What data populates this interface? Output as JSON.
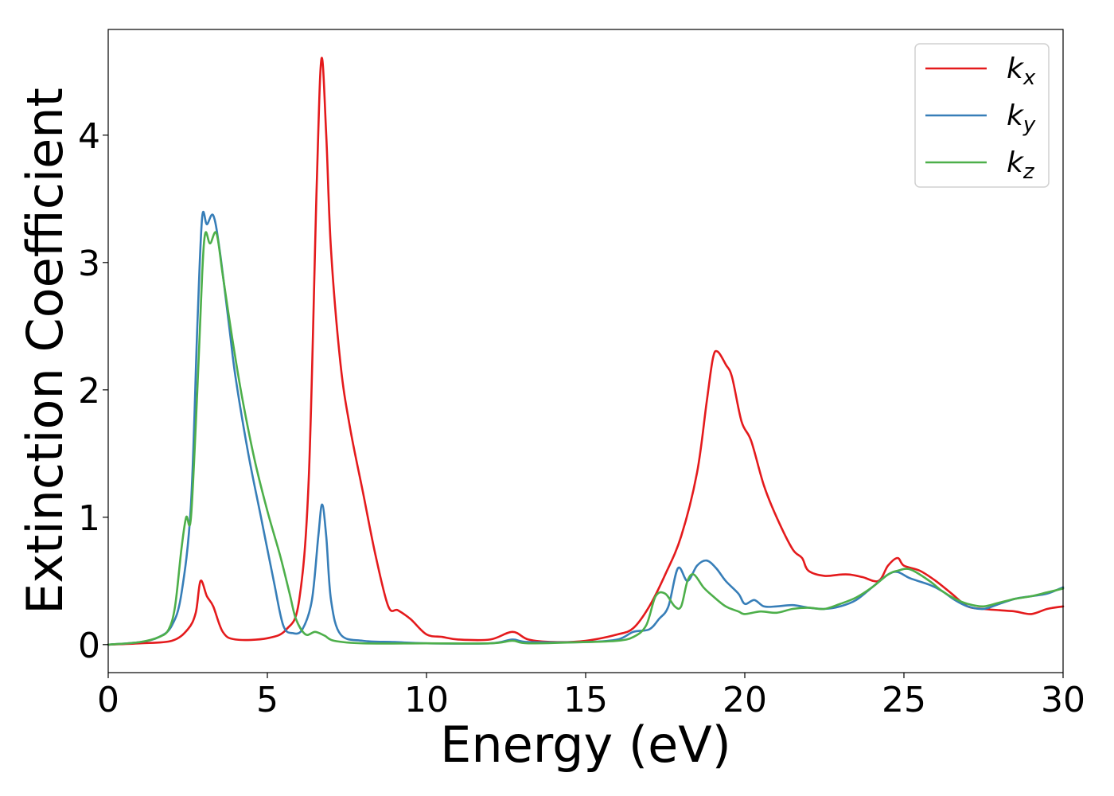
{
  "chart_data": {
    "type": "line",
    "xlabel": "Energy (eV)",
    "ylabel": "Extinction Coefficient",
    "xlim": [
      0,
      30
    ],
    "ylim": [
      -0.22,
      4.83
    ],
    "xticks": [
      0,
      5,
      10,
      15,
      20,
      25,
      30
    ],
    "yticks": [
      0,
      1,
      2,
      3,
      4
    ],
    "grid": false,
    "legend_position": "top-right",
    "series": [
      {
        "name": "k_x",
        "legend_base": "k",
        "legend_sub": "x",
        "color": "#e41a1c",
        "points": [
          [
            0,
            0
          ],
          [
            1.0,
            0.01
          ],
          [
            2.0,
            0.03
          ],
          [
            2.5,
            0.12
          ],
          [
            2.75,
            0.25
          ],
          [
            2.9,
            0.5
          ],
          [
            3.1,
            0.38
          ],
          [
            3.3,
            0.3
          ],
          [
            3.6,
            0.1
          ],
          [
            4.0,
            0.04
          ],
          [
            5.0,
            0.05
          ],
          [
            5.6,
            0.12
          ],
          [
            6.0,
            0.35
          ],
          [
            6.3,
            1.3
          ],
          [
            6.55,
            3.6
          ],
          [
            6.7,
            4.6
          ],
          [
            6.85,
            4.0
          ],
          [
            7.0,
            3.1
          ],
          [
            7.3,
            2.2
          ],
          [
            7.6,
            1.7
          ],
          [
            8.0,
            1.2
          ],
          [
            8.4,
            0.7
          ],
          [
            8.8,
            0.3
          ],
          [
            9.1,
            0.27
          ],
          [
            9.5,
            0.2
          ],
          [
            10.0,
            0.08
          ],
          [
            10.5,
            0.06
          ],
          [
            11.0,
            0.04
          ],
          [
            12.0,
            0.04
          ],
          [
            12.7,
            0.1
          ],
          [
            13.2,
            0.04
          ],
          [
            14.0,
            0.02
          ],
          [
            15.0,
            0.03
          ],
          [
            16.0,
            0.08
          ],
          [
            16.5,
            0.13
          ],
          [
            17.0,
            0.3
          ],
          [
            17.5,
            0.55
          ],
          [
            18.0,
            0.85
          ],
          [
            18.5,
            1.35
          ],
          [
            18.8,
            1.9
          ],
          [
            19.0,
            2.25
          ],
          [
            19.15,
            2.3
          ],
          [
            19.4,
            2.2
          ],
          [
            19.6,
            2.1
          ],
          [
            19.9,
            1.75
          ],
          [
            20.2,
            1.6
          ],
          [
            20.6,
            1.25
          ],
          [
            21.0,
            1.0
          ],
          [
            21.5,
            0.75
          ],
          [
            21.8,
            0.68
          ],
          [
            22.0,
            0.58
          ],
          [
            22.5,
            0.54
          ],
          [
            23.0,
            0.55
          ],
          [
            23.3,
            0.55
          ],
          [
            23.7,
            0.53
          ],
          [
            24.2,
            0.5
          ],
          [
            24.5,
            0.62
          ],
          [
            24.8,
            0.68
          ],
          [
            25.0,
            0.62
          ],
          [
            25.5,
            0.58
          ],
          [
            26.0,
            0.5
          ],
          [
            26.5,
            0.4
          ],
          [
            27.0,
            0.3
          ],
          [
            27.5,
            0.28
          ],
          [
            28.0,
            0.27
          ],
          [
            28.5,
            0.26
          ],
          [
            29.0,
            0.24
          ],
          [
            29.5,
            0.28
          ],
          [
            30.0,
            0.3
          ]
        ]
      },
      {
        "name": "k_y",
        "legend_base": "k",
        "legend_sub": "y",
        "color": "#377eb8",
        "points": [
          [
            0,
            0
          ],
          [
            1.0,
            0.02
          ],
          [
            1.6,
            0.06
          ],
          [
            2.0,
            0.15
          ],
          [
            2.3,
            0.4
          ],
          [
            2.6,
            1.1
          ],
          [
            2.8,
            2.5
          ],
          [
            2.95,
            3.35
          ],
          [
            3.1,
            3.3
          ],
          [
            3.3,
            3.37
          ],
          [
            3.5,
            3.1
          ],
          [
            3.8,
            2.5
          ],
          [
            4.0,
            2.1
          ],
          [
            4.4,
            1.5
          ],
          [
            4.8,
            1.0
          ],
          [
            5.2,
            0.5
          ],
          [
            5.5,
            0.15
          ],
          [
            5.8,
            0.09
          ],
          [
            6.1,
            0.12
          ],
          [
            6.4,
            0.35
          ],
          [
            6.6,
            0.85
          ],
          [
            6.72,
            1.1
          ],
          [
            6.85,
            0.85
          ],
          [
            7.0,
            0.35
          ],
          [
            7.3,
            0.08
          ],
          [
            8.0,
            0.03
          ],
          [
            9.0,
            0.02
          ],
          [
            10.0,
            0.01
          ],
          [
            12.0,
            0.01
          ],
          [
            12.7,
            0.04
          ],
          [
            13.2,
            0.02
          ],
          [
            15.0,
            0.02
          ],
          [
            16.0,
            0.04
          ],
          [
            16.5,
            0.1
          ],
          [
            17.0,
            0.12
          ],
          [
            17.3,
            0.2
          ],
          [
            17.6,
            0.3
          ],
          [
            17.9,
            0.6
          ],
          [
            18.2,
            0.5
          ],
          [
            18.5,
            0.62
          ],
          [
            18.8,
            0.66
          ],
          [
            19.1,
            0.6
          ],
          [
            19.4,
            0.5
          ],
          [
            19.8,
            0.4
          ],
          [
            20.0,
            0.32
          ],
          [
            20.3,
            0.35
          ],
          [
            20.6,
            0.3
          ],
          [
            21.0,
            0.3
          ],
          [
            21.5,
            0.31
          ],
          [
            22.0,
            0.29
          ],
          [
            22.5,
            0.28
          ],
          [
            23.0,
            0.3
          ],
          [
            23.5,
            0.35
          ],
          [
            24.0,
            0.45
          ],
          [
            24.5,
            0.55
          ],
          [
            24.8,
            0.57
          ],
          [
            25.2,
            0.52
          ],
          [
            25.8,
            0.47
          ],
          [
            26.2,
            0.42
          ],
          [
            26.6,
            0.35
          ],
          [
            27.0,
            0.3
          ],
          [
            27.5,
            0.28
          ],
          [
            28.0,
            0.32
          ],
          [
            28.5,
            0.36
          ],
          [
            29.0,
            0.38
          ],
          [
            29.5,
            0.4
          ],
          [
            30.0,
            0.45
          ]
        ]
      },
      {
        "name": "k_z",
        "legend_base": "k",
        "legend_sub": "z",
        "color": "#4daf4a",
        "points": [
          [
            0,
            0
          ],
          [
            1.0,
            0.02
          ],
          [
            1.6,
            0.06
          ],
          [
            1.9,
            0.12
          ],
          [
            2.1,
            0.3
          ],
          [
            2.3,
            0.75
          ],
          [
            2.45,
            1.0
          ],
          [
            2.6,
            1.0
          ],
          [
            2.8,
            2.0
          ],
          [
            2.95,
            2.9
          ],
          [
            3.05,
            3.23
          ],
          [
            3.2,
            3.15
          ],
          [
            3.4,
            3.23
          ],
          [
            3.6,
            2.9
          ],
          [
            3.9,
            2.4
          ],
          [
            4.2,
            1.95
          ],
          [
            4.6,
            1.45
          ],
          [
            5.0,
            1.05
          ],
          [
            5.4,
            0.7
          ],
          [
            5.7,
            0.4
          ],
          [
            5.9,
            0.2
          ],
          [
            6.2,
            0.08
          ],
          [
            6.5,
            0.1
          ],
          [
            6.8,
            0.07
          ],
          [
            7.1,
            0.03
          ],
          [
            8.0,
            0.01
          ],
          [
            10.0,
            0.01
          ],
          [
            12.0,
            0.01
          ],
          [
            12.7,
            0.03
          ],
          [
            13.2,
            0.01
          ],
          [
            15.0,
            0.02
          ],
          [
            16.0,
            0.03
          ],
          [
            16.5,
            0.06
          ],
          [
            16.9,
            0.15
          ],
          [
            17.2,
            0.38
          ],
          [
            17.5,
            0.4
          ],
          [
            17.8,
            0.3
          ],
          [
            18.0,
            0.3
          ],
          [
            18.2,
            0.5
          ],
          [
            18.4,
            0.55
          ],
          [
            18.7,
            0.45
          ],
          [
            19.0,
            0.38
          ],
          [
            19.4,
            0.3
          ],
          [
            19.8,
            0.26
          ],
          [
            20.0,
            0.24
          ],
          [
            20.5,
            0.26
          ],
          [
            21.0,
            0.25
          ],
          [
            21.5,
            0.28
          ],
          [
            22.0,
            0.29
          ],
          [
            22.5,
            0.28
          ],
          [
            23.0,
            0.32
          ],
          [
            23.5,
            0.37
          ],
          [
            24.0,
            0.45
          ],
          [
            24.5,
            0.55
          ],
          [
            24.8,
            0.58
          ],
          [
            25.2,
            0.59
          ],
          [
            25.8,
            0.5
          ],
          [
            26.2,
            0.42
          ],
          [
            26.6,
            0.36
          ],
          [
            27.0,
            0.32
          ],
          [
            27.5,
            0.3
          ],
          [
            28.0,
            0.33
          ],
          [
            28.5,
            0.36
          ],
          [
            29.0,
            0.38
          ],
          [
            29.5,
            0.41
          ],
          [
            30.0,
            0.44
          ]
        ]
      }
    ]
  }
}
